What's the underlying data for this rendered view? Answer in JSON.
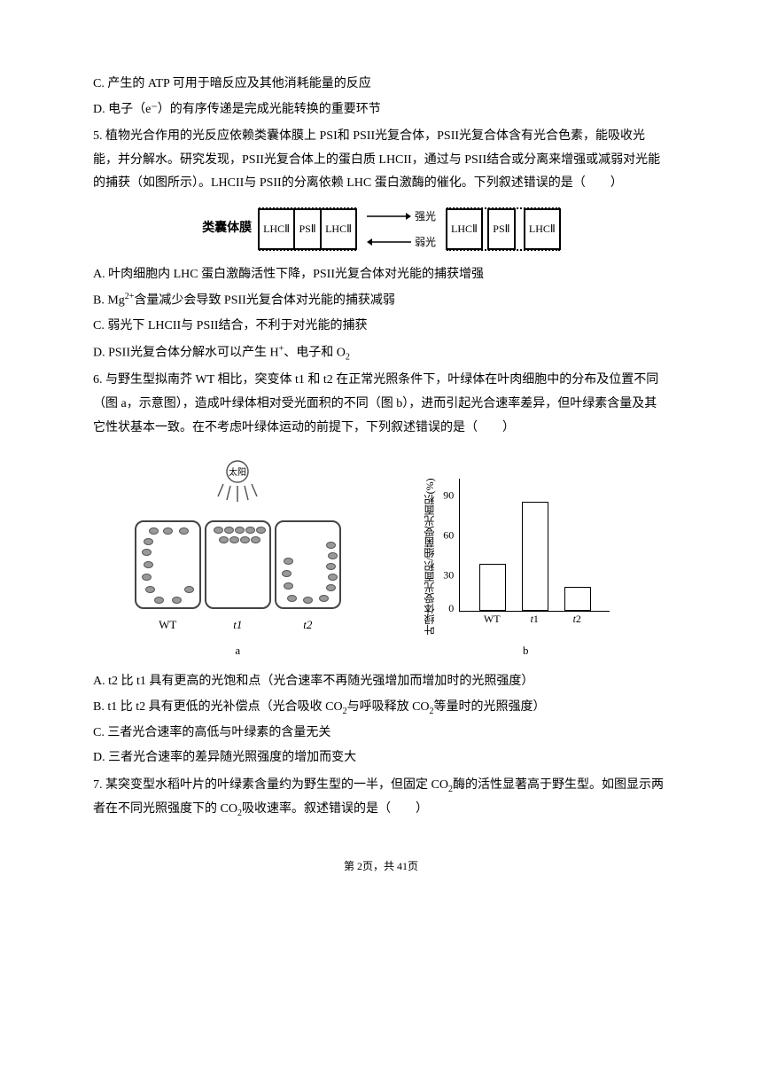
{
  "q4": {
    "optC": "C. 产生的 ATP 可用于暗反应及其他消耗能量的反应",
    "optD": "D. 电子（e⁻）的有序传递是完成光能转换的重要环节"
  },
  "q5": {
    "num": "5.",
    "text1": "植物光合作用的光反应依赖类囊体膜上 PSI和 PSII光复合体，PSII光复合体含有光合色素，能吸收光能，并分解水。研究发现，PSII光复合体上的蛋白质 LHCII，通过与 PSII结合或分离来增强或减弱对光能的捕获（如图所示）。LHCII与 PSII的分离依赖 LHC 蛋白激酶的催化。下列叙述错误的是（　　）",
    "diagram": {
      "thylakoid_label": "类囊体膜",
      "box_lhc": "LHCⅡ",
      "box_ps": "PSⅡ",
      "arrow_top_label": "强光",
      "arrow_bottom_label": "弱光"
    },
    "optA": "A. 叶肉细胞内 LHC 蛋白激酶活性下降，PSII光复合体对光能的捕获增强",
    "optB_prefix": "B. Mg",
    "optB_rest": "含量减少会导致 PSII光复合体对光能的捕获减弱",
    "optC": "C. 弱光下 LHCII与 PSII结合，不利于对光能的捕获",
    "optD_prefix": "D. PSII光复合体分解水可以产生 H",
    "optD_rest": "、电子和 O"
  },
  "q6": {
    "num": "6.",
    "text1": "与野生型拟南芥 WT 相比，突变体 t1 和 t2 在正常光照条件下，叶绿体在叶肉细胞中的分布及位置不同（图 a，示意图），造成叶绿体相对受光面积的不同（图 b），进而引起光合速率差异，865但叶绿素含量及其它性状基本一致。在不考虑叶绿体运动的前提下，下列叙述错误的是（　　）",
    "figA": {
      "sun_label": "太阳",
      "labels": [
        "WT",
        "t1",
        "t2"
      ],
      "caption": "a"
    },
    "figB": {
      "y_axis_label": "叶绿体受光面积/细菌受光面积(%)",
      "y_ticks": [
        0,
        30,
        60,
        90
      ],
      "y_max": 100,
      "bars": [
        {
          "label": "WT",
          "value": 35,
          "x": 22,
          "color": "#ffffff"
        },
        {
          "label": "t1",
          "value": 82,
          "x": 70,
          "color": "#ffffff"
        },
        {
          "label": "t2",
          "value": 18,
          "x": 118,
          "color": "#ffffff"
        }
      ],
      "caption": "b",
      "border_color": "#000000"
    },
    "optA_prefix": "A. t2 比 t1 具有更高的光饱和点（光合速率不再随光强增加而增加时的光照强度）",
    "optB_prefix": "B. t1 比 t2 具有更低的光补偿点（光合吸收 CO",
    "optB_rest": "与呼吸释放 CO",
    "optB_rest2": "等量时的光照强度）",
    "optC": "C. 三者光合速率的高低与叶绿素的含量无关",
    "optD": "D. 三者光合速率的差异随光照强度的增加而变大"
  },
  "q7": {
    "num": "7.",
    "text_p1": "某突变型水稻叶片的叶绿素含量约为野生型的一半，但固定 CO",
    "text_p2": "酶的活性显著高于野生型。如图显示两者在不同光照强度下的 CO",
    "text_p3": "吸收速率。叙述错误的是（　　）"
  },
  "footer": {
    "text": "第 2页，共 41页"
  }
}
